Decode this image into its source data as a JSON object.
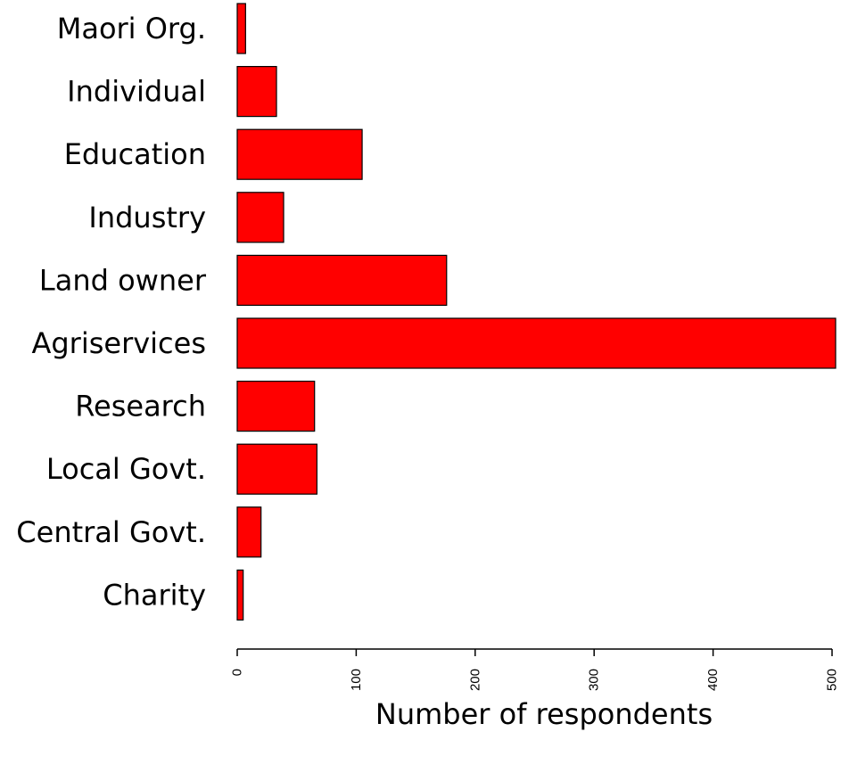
{
  "chart_data": {
    "type": "bar",
    "orientation": "horizontal",
    "categories": [
      "Maori Org.",
      "Individual",
      "Education",
      "Industry",
      "Land owner",
      "Agriservices",
      "Research",
      "Local Govt.",
      "Central Govt.",
      "Charity"
    ],
    "values": [
      7,
      33,
      105,
      39,
      176,
      503,
      65,
      67,
      20,
      5
    ],
    "xlabel": "Number of respondents",
    "ylabel": "",
    "xlim": [
      0,
      500
    ],
    "xticks": [
      "0",
      "100",
      "200",
      "300",
      "400",
      "500"
    ],
    "grid": false,
    "bar_color": "#ff0000",
    "bar_edge_color": "#000000"
  }
}
